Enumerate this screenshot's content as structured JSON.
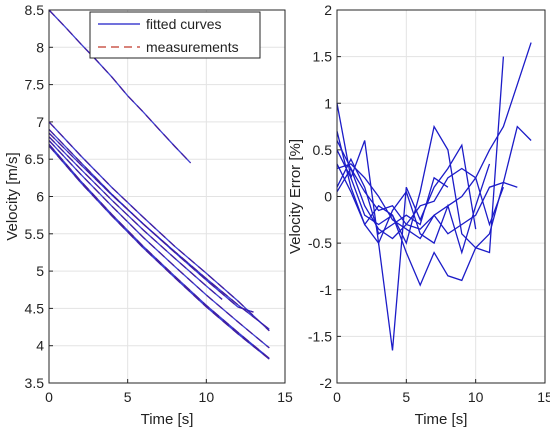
{
  "chart_data": [
    {
      "type": "line",
      "xlabel": "Time [s]",
      "ylabel": "Velocity [m/s]",
      "xlim": [
        0,
        15
      ],
      "ylim": [
        3.5,
        8.5
      ],
      "xticks": [
        0,
        5,
        10,
        15
      ],
      "yticks": [
        3.5,
        4,
        4.5,
        5,
        5.5,
        6,
        6.5,
        7,
        7.5,
        8,
        8.5
      ],
      "grid": true,
      "legend_position": "top-right",
      "legend": [
        "fitted curves",
        "measurements"
      ],
      "colors": {
        "fitted": "#1c1cc8",
        "measurements": "#c0392b"
      },
      "series": [
        {
          "x": [
            0,
            1,
            2,
            3,
            4,
            5,
            6,
            7,
            8,
            9
          ],
          "values": [
            8.5,
            8.28,
            8.05,
            7.83,
            7.6,
            7.35,
            7.13,
            6.9,
            6.67,
            6.45
          ]
        },
        {
          "x": [
            0,
            2,
            4,
            6,
            8,
            10,
            12,
            14
          ],
          "values": [
            7.0,
            6.55,
            6.12,
            5.72,
            5.33,
            4.97,
            4.6,
            4.2
          ]
        },
        {
          "x": [
            0,
            2,
            4,
            6,
            8,
            10,
            12,
            13
          ],
          "values": [
            6.9,
            6.46,
            6.03,
            5.63,
            5.25,
            4.88,
            4.52,
            4.45
          ]
        },
        {
          "x": [
            0,
            2,
            4,
            6,
            8,
            10,
            12,
            14
          ],
          "values": [
            6.85,
            6.43,
            6.02,
            5.63,
            5.26,
            4.9,
            4.55,
            4.22
          ]
        },
        {
          "x": [
            0,
            2,
            4,
            6,
            8,
            10,
            11
          ],
          "values": [
            6.8,
            6.37,
            5.95,
            5.55,
            5.17,
            4.8,
            4.62
          ]
        },
        {
          "x": [
            0,
            2,
            4,
            6,
            8,
            10,
            12,
            14
          ],
          "values": [
            6.75,
            6.3,
            5.87,
            5.45,
            5.06,
            4.68,
            4.32,
            3.97
          ]
        },
        {
          "x": [
            0,
            2,
            4,
            6,
            8,
            10,
            12,
            14
          ],
          "values": [
            6.7,
            6.21,
            5.76,
            5.33,
            4.93,
            4.54,
            4.18,
            3.83
          ]
        },
        {
          "x": [
            0,
            2,
            4,
            6,
            8,
            10,
            12,
            14
          ],
          "values": [
            6.68,
            6.19,
            5.74,
            5.31,
            4.91,
            4.52,
            4.16,
            3.82
          ]
        }
      ]
    },
    {
      "type": "line",
      "xlabel": "Time [s]",
      "ylabel": "Velocity Error [%]",
      "xlim": [
        0,
        15
      ],
      "ylim": [
        -2,
        2
      ],
      "xticks": [
        0,
        5,
        10,
        15
      ],
      "yticks": [
        -2,
        -1.5,
        -1,
        -0.5,
        0,
        0.5,
        1,
        1.5,
        2
      ],
      "grid": true,
      "colors": {
        "line": "#1c1cc8"
      },
      "series": [
        {
          "x": [
            0,
            1,
            2,
            3,
            4,
            5,
            6,
            7,
            8,
            9,
            10,
            11,
            12,
            13,
            14
          ],
          "values": [
            0.05,
            0.3,
            -0.1,
            -0.35,
            -0.45,
            -0.3,
            -0.1,
            -0.05,
            0.2,
            0.3,
            0.2,
            0.5,
            0.75,
            1.2,
            1.65
          ]
        },
        {
          "x": [
            0,
            1,
            2,
            3,
            4,
            5,
            6,
            7,
            8,
            9,
            10,
            11,
            12
          ],
          "values": [
            1.0,
            0.2,
            -0.2,
            -0.3,
            -0.2,
            -0.5,
            0.05,
            0.75,
            0.5,
            -0.4,
            -0.55,
            -0.6,
            1.5
          ]
        },
        {
          "x": [
            0,
            1,
            2,
            3,
            4,
            5,
            6,
            7,
            8,
            9,
            10
          ],
          "values": [
            0.7,
            0.1,
            -0.3,
            -0.5,
            -1.65,
            0.1,
            -0.25,
            0.1,
            0.3,
            0.55,
            -0.35
          ]
        },
        {
          "x": [
            0,
            1,
            2,
            3,
            4,
            5,
            6,
            7,
            8,
            9,
            10,
            11
          ],
          "values": [
            0.5,
            0.2,
            0.6,
            -0.5,
            -0.15,
            0.05,
            -0.4,
            -0.5,
            -0.1,
            -0.6,
            -0.1,
            0.35
          ]
        },
        {
          "x": [
            0,
            1,
            2,
            3,
            4,
            5,
            6,
            7,
            8,
            9,
            10,
            11,
            12,
            13
          ],
          "values": [
            0.35,
            0.05,
            -0.3,
            -0.1,
            -0.2,
            -0.6,
            -0.95,
            -0.6,
            -0.85,
            -0.9,
            -0.55,
            -0.4,
            0.15,
            0.1
          ]
        },
        {
          "x": [
            0,
            1,
            2,
            3,
            4,
            5,
            6,
            7,
            8,
            9,
            10,
            11,
            12,
            13,
            14
          ],
          "values": [
            0.6,
            0.3,
            0.05,
            -0.15,
            -0.1,
            -0.3,
            -0.35,
            -0.2,
            -0.4,
            -0.3,
            -0.2,
            0.1,
            0.15,
            0.75,
            0.6
          ]
        },
        {
          "x": [
            0,
            1,
            2,
            3,
            4,
            5,
            6,
            7,
            8
          ],
          "values": [
            0.1,
            0.4,
            0.1,
            -0.4,
            -0.3,
            -0.2,
            -0.3,
            0.2,
            0.1
          ]
        },
        {
          "x": [
            0,
            1,
            2,
            3,
            4,
            5,
            6,
            7,
            8,
            9,
            10,
            11,
            12
          ],
          "values": [
            0.3,
            0.35,
            0.2,
            0.0,
            -0.25,
            -0.35,
            -0.45,
            -0.2,
            -0.1,
            0.0,
            0.2,
            -0.3,
            0.1
          ]
        }
      ]
    }
  ]
}
